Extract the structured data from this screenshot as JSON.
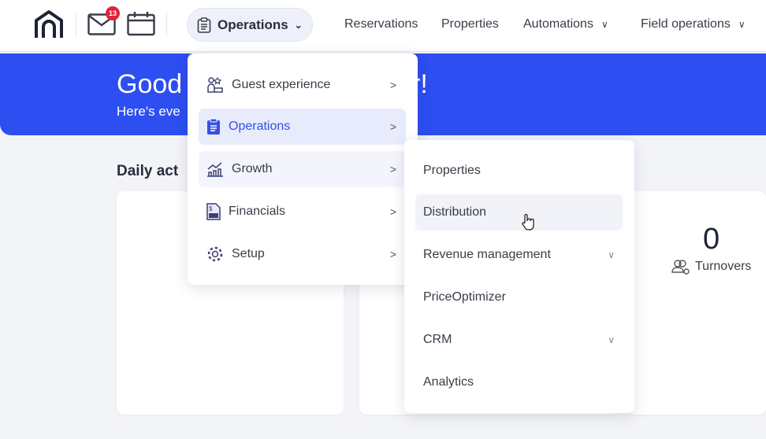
{
  "header": {
    "notifications_count": "13",
    "current_section": "Operations",
    "nav": [
      {
        "label": "Reservations",
        "has_dropdown": false
      },
      {
        "label": "Properties",
        "has_dropdown": false
      },
      {
        "label": "Automations",
        "has_dropdown": true
      },
      {
        "label": "Field operations",
        "has_dropdown": true
      }
    ]
  },
  "banner": {
    "title_visible": "Good",
    "title_end": "r!",
    "subtitle_visible": "Here's eve",
    "color": "#2d4ef0"
  },
  "section_title": "Daily act",
  "stats": {
    "turnovers_value": "0",
    "turnovers_label": "Turnovers"
  },
  "main_menu": [
    {
      "label": "Guest experience",
      "icon": "guest-icon"
    },
    {
      "label": "Operations",
      "icon": "clipboard-icon",
      "active": true
    },
    {
      "label": "Growth",
      "icon": "growth-chart-icon"
    },
    {
      "label": "Financials",
      "icon": "invoice-icon"
    },
    {
      "label": "Setup",
      "icon": "gear-icon"
    }
  ],
  "sub_menu": [
    {
      "label": "Properties",
      "expandable": false
    },
    {
      "label": "Distribution",
      "expandable": false,
      "hover": true
    },
    {
      "label": "Revenue management",
      "expandable": true
    },
    {
      "label": "PriceOptimizer",
      "expandable": false
    },
    {
      "label": "CRM",
      "expandable": true
    },
    {
      "label": "Analytics",
      "expandable": false
    }
  ],
  "colors": {
    "accent": "#3550e8",
    "badge": "#e0243a"
  }
}
